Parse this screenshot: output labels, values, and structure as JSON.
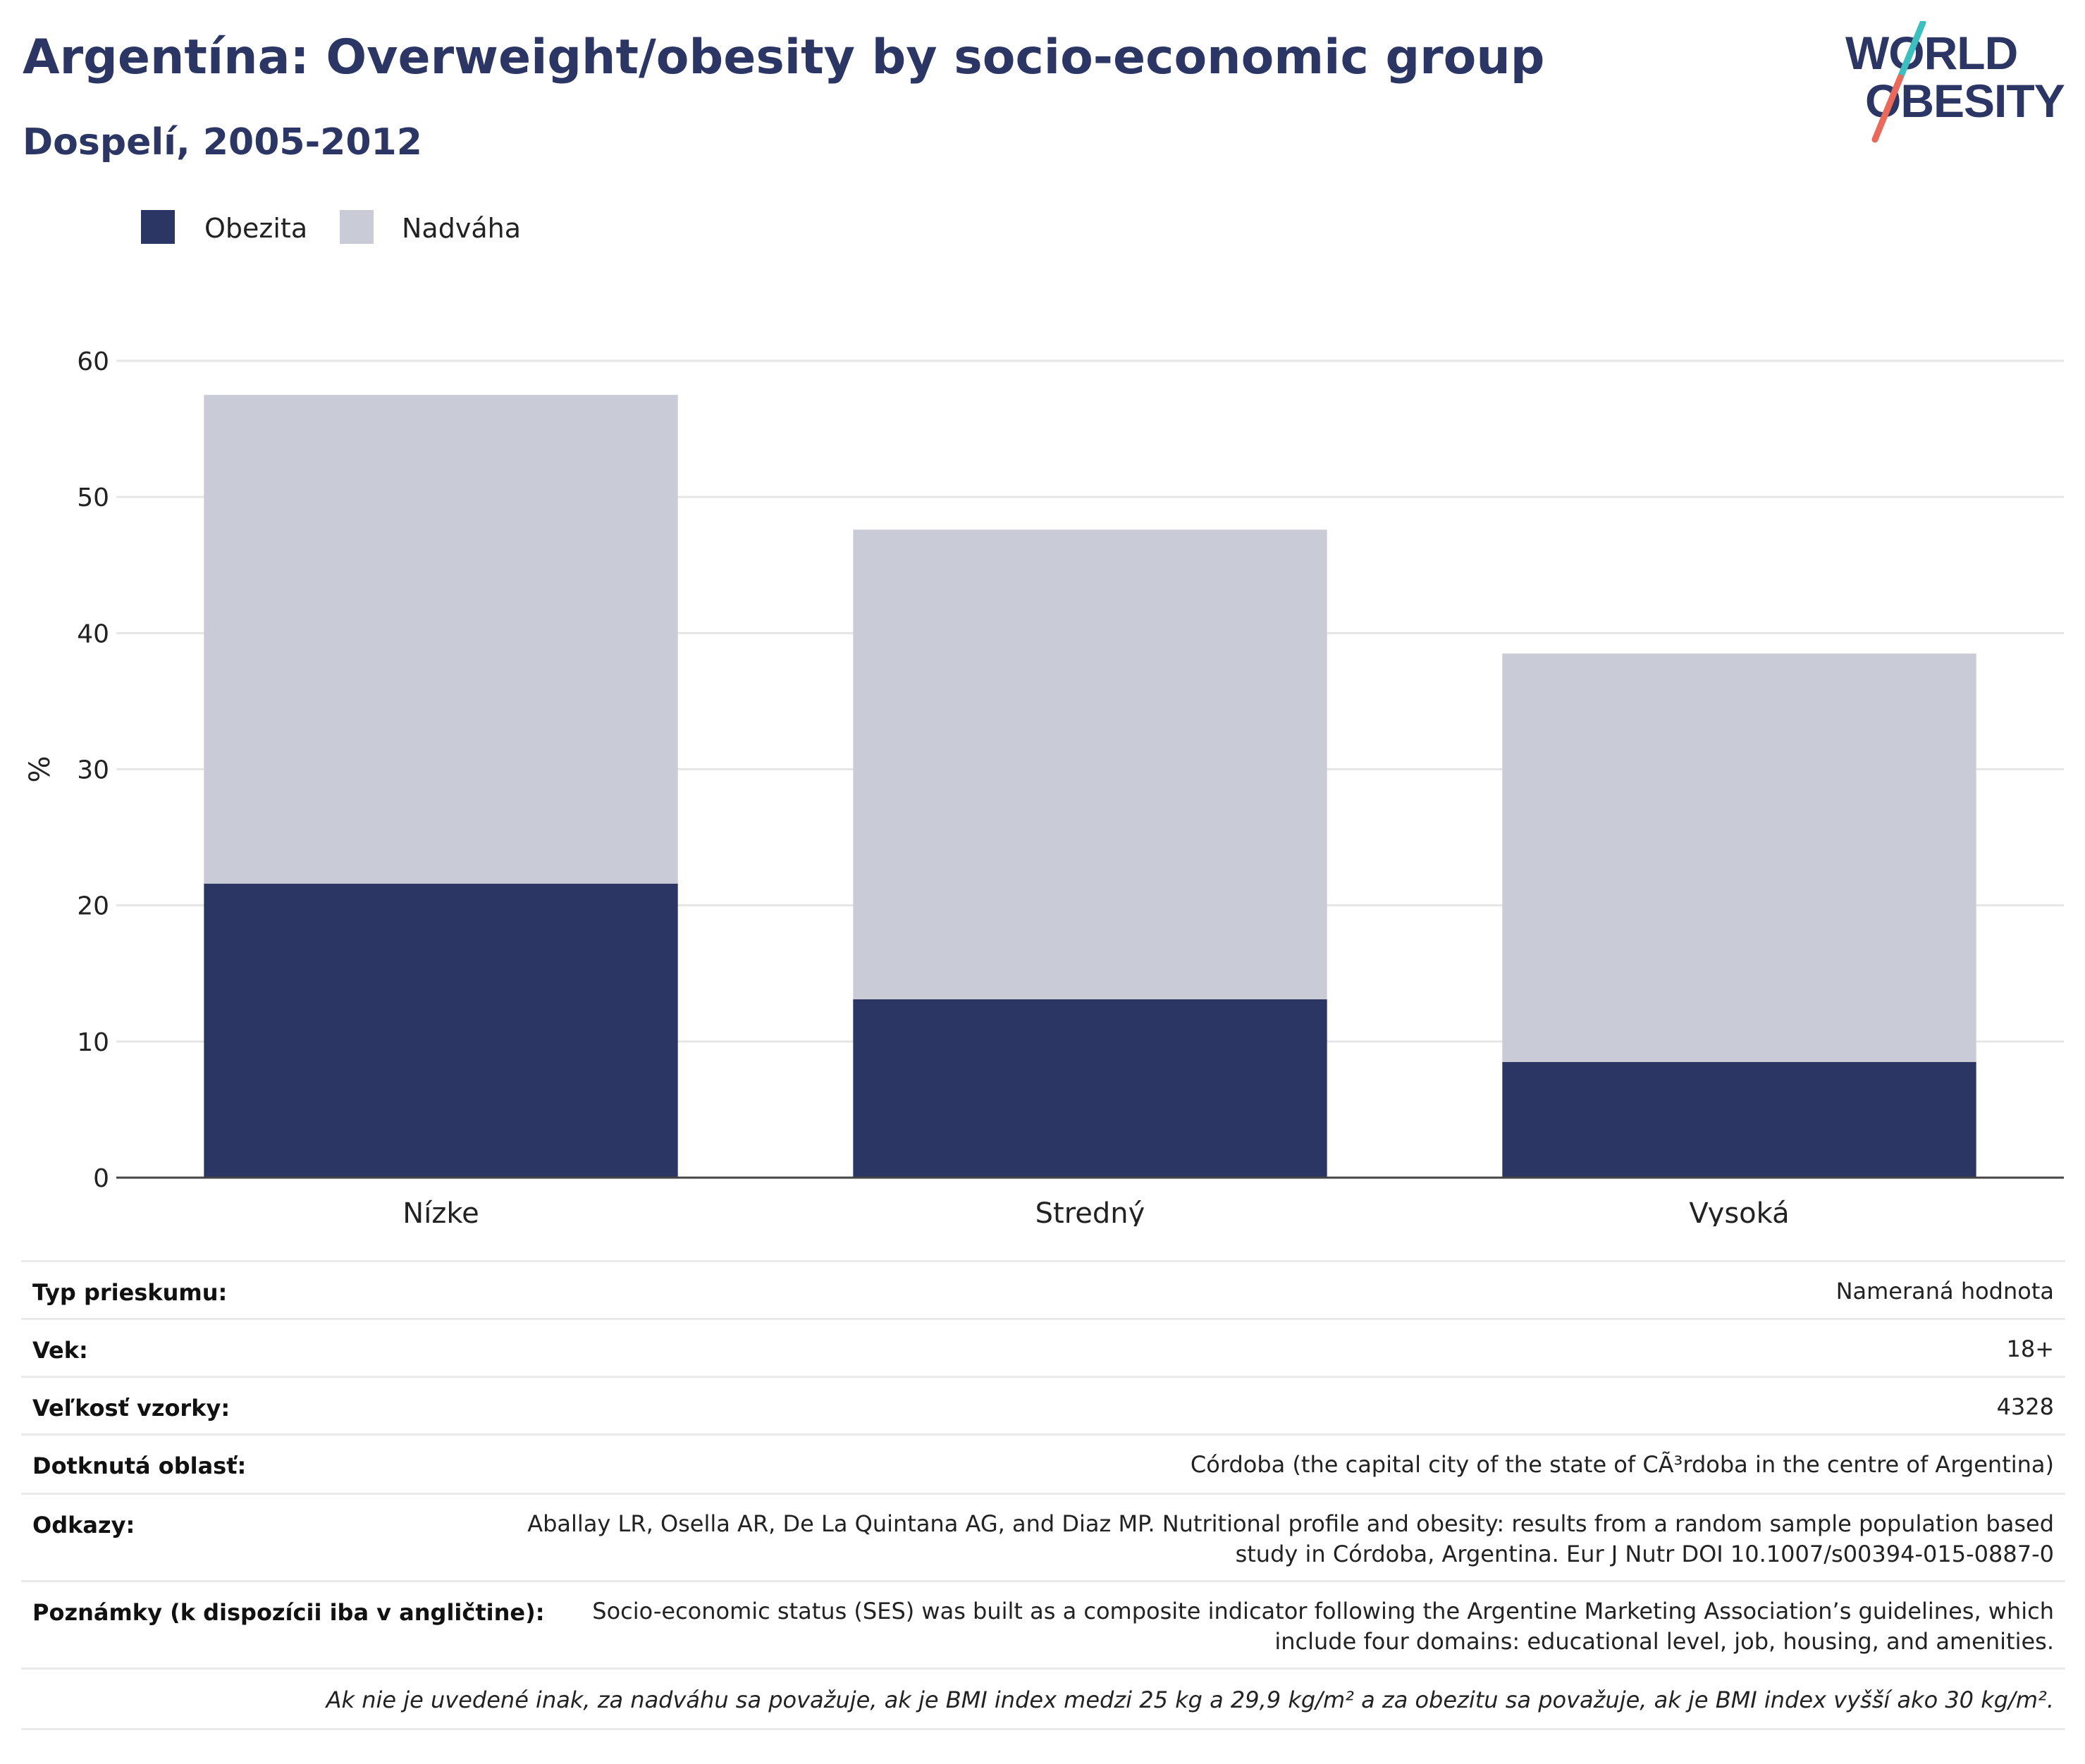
{
  "header": {
    "title": "Argentína: Overweight/obesity by socio-economic group",
    "subtitle": "Dospelí, 2005-2012"
  },
  "logo": {
    "line1": "WORLD",
    "line2": "OBESITY"
  },
  "colors": {
    "obesity": "#2b3664",
    "overweight": "#c9cbd6",
    "title": "#2b3664",
    "logo_teal": "#3bbfbf",
    "logo_coral": "#e96a5b"
  },
  "chart_data": {
    "type": "bar",
    "stacked": true,
    "categories": [
      "Nízke",
      "Stredný",
      "Vysoká"
    ],
    "series": [
      {
        "name": "Obezita",
        "values": [
          21.6,
          13.1,
          8.5
        ]
      },
      {
        "name": "Nadváha",
        "values": [
          35.9,
          34.5,
          30.0
        ]
      }
    ],
    "ylabel": "%",
    "ylim": [
      0,
      60
    ],
    "yticks": [
      0,
      10,
      20,
      30,
      40,
      50,
      60
    ],
    "grid": true,
    "legend_position": "top-left"
  },
  "info": {
    "rows": [
      {
        "label": "Typ prieskumu:",
        "value": "Nameraná hodnota"
      },
      {
        "label": "Vek:",
        "value": "18+"
      },
      {
        "label": "Veľkosť vzorky:",
        "value": "4328"
      },
      {
        "label": "Dotknutá oblasť:",
        "value": "Córdoba (the capital city of the state of CÃ³rdoba in the centre of Argentina)"
      },
      {
        "label": "Odkazy:",
        "value_lines": [
          "Aballay LR, Osella AR, De La Quintana AG, and Diaz MP. Nutritional profile and obesity: results from a random sample population based",
          "study in Córdoba, Argentina. Eur J Nutr DOI 10.1007/s00394-015-0887-0"
        ]
      },
      {
        "label": "Poznámky (k dispozícii iba v angličtine):",
        "value_lines": [
          "Socio-economic status (SES) was built as a composite indicator following the Argentine Marketing Association’s guidelines, which",
          "include four domains: educational level, job, housing, and amenities."
        ]
      }
    ],
    "footnote": "Ak nie je uvedené inak, za nadváhu sa považuje, ak je BMI index medzi 25 kg a 29,9 kg/m² a za obezitu sa považuje, ak je BMI index vyšší ako 30 kg/m²."
  }
}
